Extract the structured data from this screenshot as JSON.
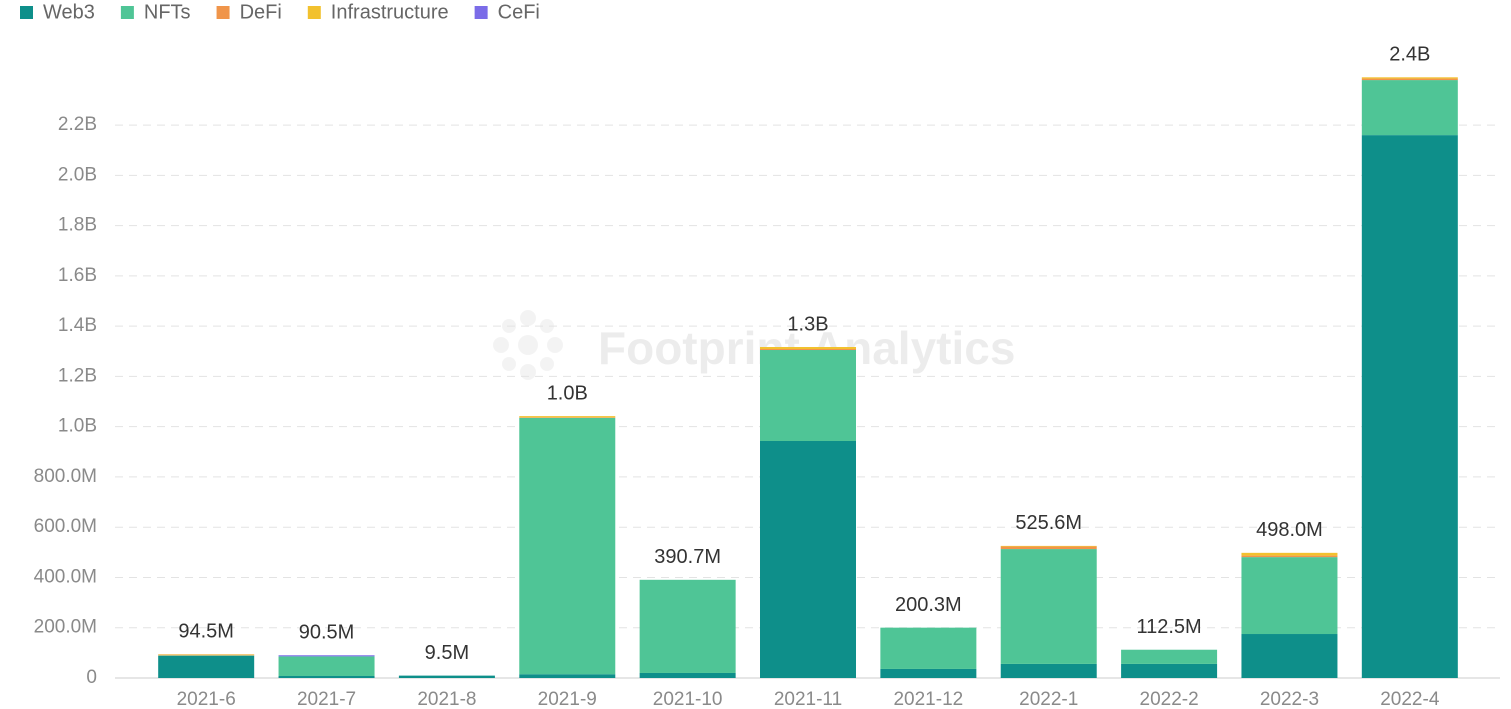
{
  "chart_data": {
    "type": "bar",
    "stacked": true,
    "watermark": "Footprint Analytics",
    "categories": [
      "2021-6",
      "2021-7",
      "2021-8",
      "2021-9",
      "2021-10",
      "2021-11",
      "2021-12",
      "2022-1",
      "2022-2",
      "2022-3",
      "2022-4"
    ],
    "series": [
      {
        "name": "Web3",
        "color": "#0e8f8a",
        "values": [
          88000000,
          8000000,
          9500000,
          15000000,
          20000000,
          943000000,
          36000000,
          56000000,
          56000000,
          175000000,
          2160000000
        ]
      },
      {
        "name": "NFTs",
        "color": "#4fc596",
        "values": [
          2000000,
          78000000,
          0,
          1020000000,
          370700000,
          362000000,
          164300000,
          457000000,
          56500000,
          306000000,
          219000000
        ]
      },
      {
        "name": "DeFi",
        "color": "#f0954a",
        "values": [
          3000000,
          0,
          0,
          2000000,
          0,
          4000000,
          0,
          10000000,
          0,
          6000000,
          6000000
        ]
      },
      {
        "name": "Infrastructure",
        "color": "#f2c12e",
        "values": [
          1500000,
          0,
          0,
          5000000,
          0,
          8000000,
          0,
          2600000,
          0,
          11000000,
          5000000
        ]
      },
      {
        "name": "CeFi",
        "color": "#7b6ce8",
        "values": [
          0,
          4500000,
          0,
          0,
          0,
          0,
          0,
          0,
          0,
          0,
          0
        ]
      }
    ],
    "totals": [
      94500000,
      90500000,
      9500000,
      1042000000,
      390700000,
      1317000000,
      200300000,
      525600000,
      112500000,
      498000000,
      2390000000
    ],
    "total_labels": [
      "94.5M",
      "90.5M",
      "9.5M",
      "1.0B",
      "390.7M",
      "1.3B",
      "200.3M",
      "525.6M",
      "112.5M",
      "498.0M",
      "2.4B"
    ],
    "ylim": [
      0,
      2400000000
    ],
    "yticks": [
      0,
      {
        "value": 200000000,
        "label": "200.0M"
      },
      {
        "value": 400000000,
        "label": "400.0M"
      },
      {
        "value": 600000000,
        "label": "600.0M"
      },
      {
        "value": 800000000,
        "label": "800.0M"
      },
      {
        "value": 1000000000,
        "label": "1.0B"
      },
      {
        "value": 1200000000,
        "label": "1.2B"
      },
      {
        "value": 1400000000,
        "label": "1.4B"
      },
      {
        "value": 1600000000,
        "label": "1.6B"
      },
      {
        "value": 1800000000,
        "label": "1.8B"
      },
      {
        "value": 2000000000,
        "label": "2.0B"
      },
      {
        "value": 2200000000,
        "label": "2.2B"
      }
    ],
    "grid": true,
    "legend": "top-left"
  }
}
